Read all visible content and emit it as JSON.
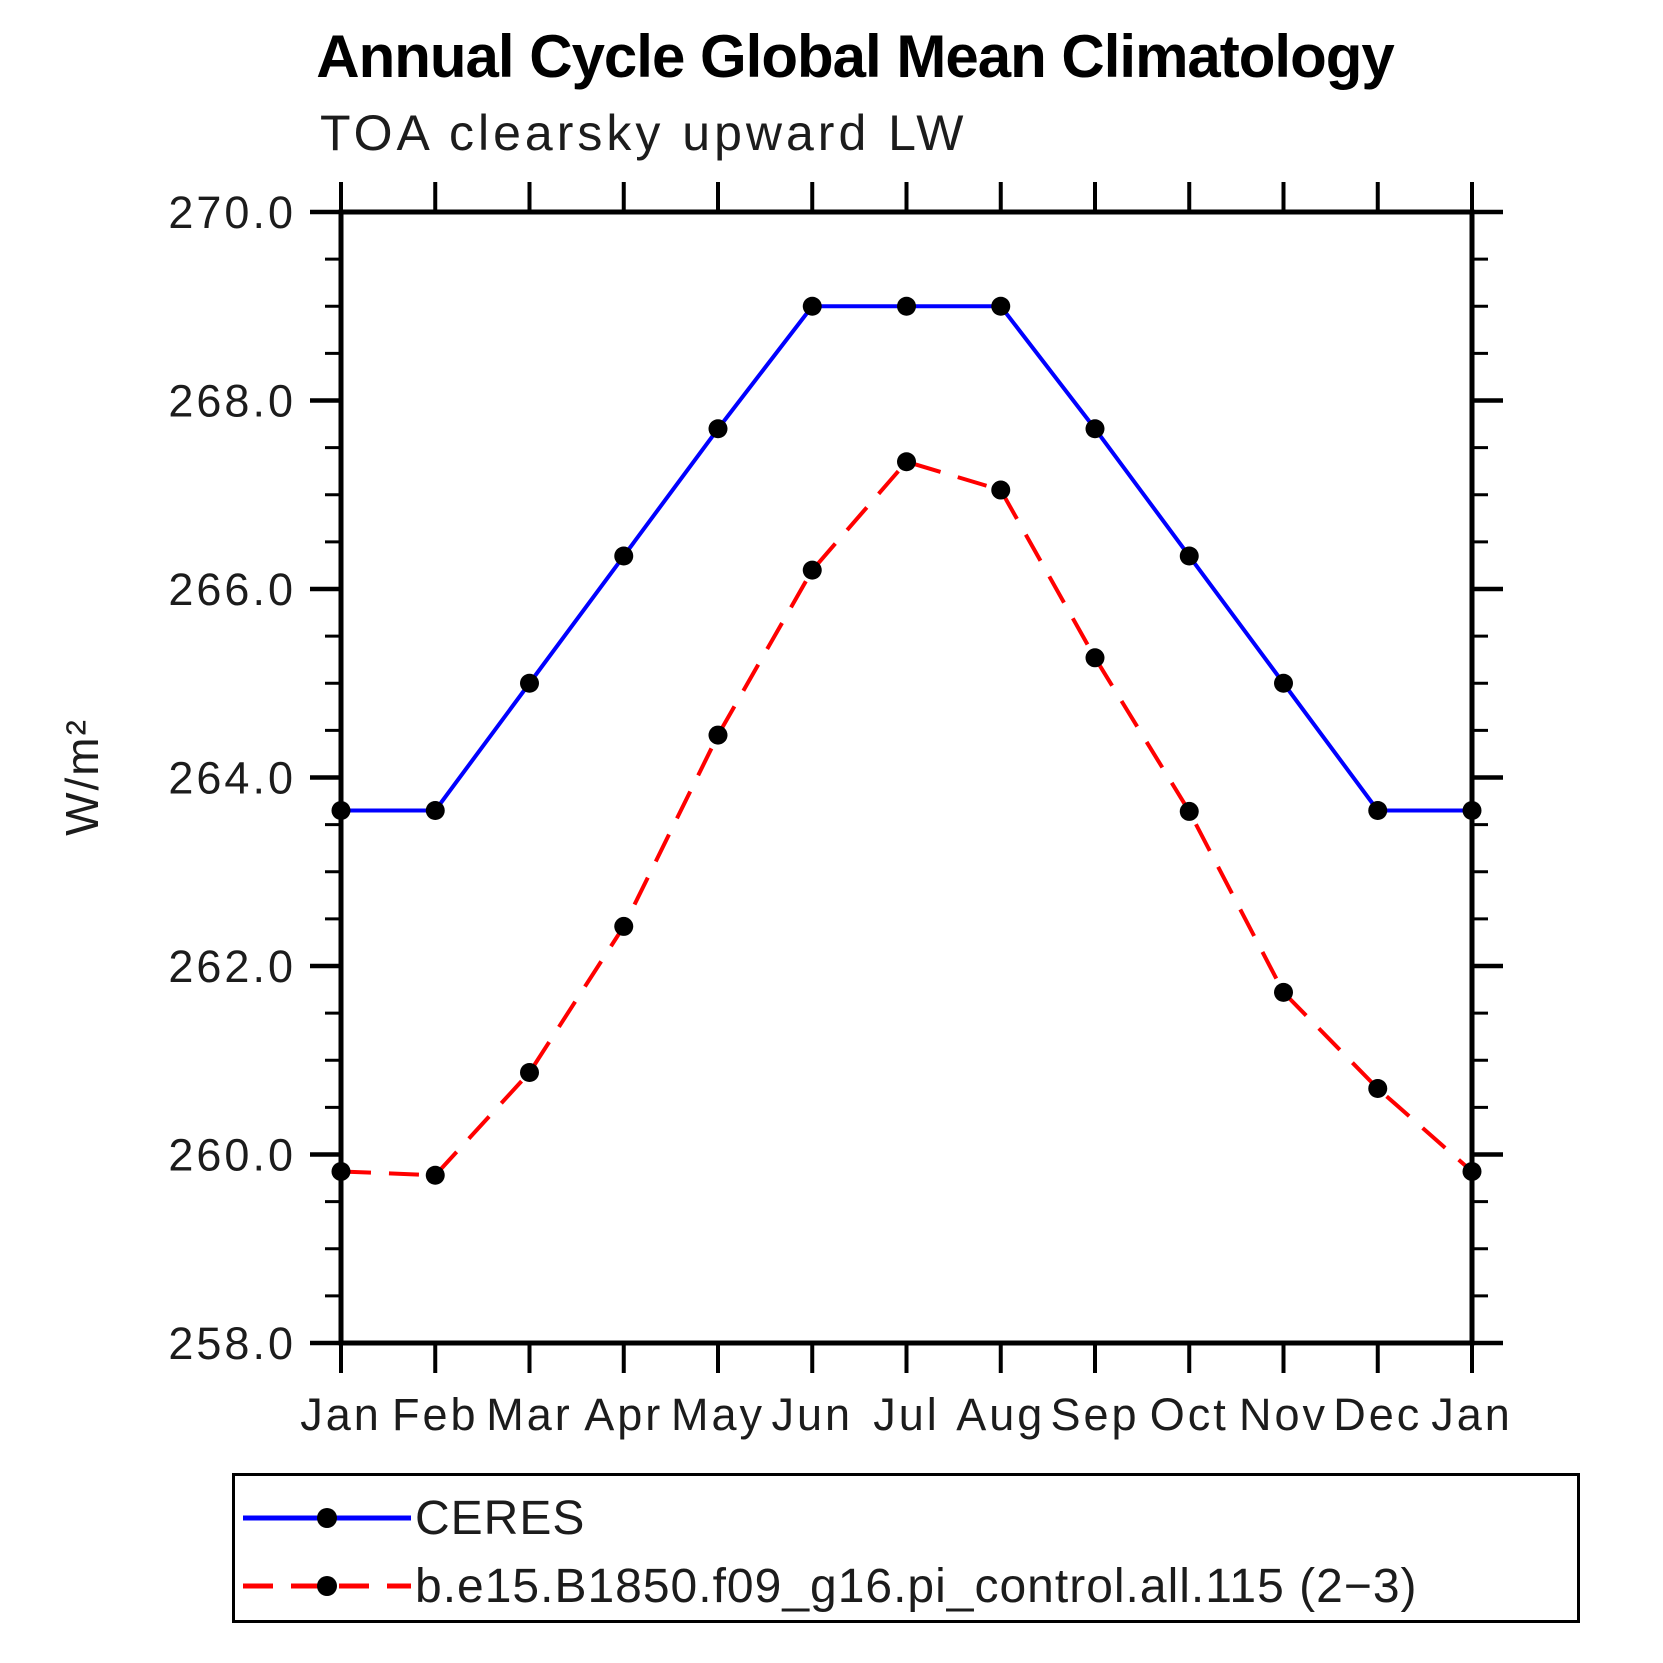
{
  "header": {
    "title": "Annual Cycle Global Mean Climatology",
    "subtitle": "TOA clearsky upward LW"
  },
  "legend": {
    "items": [
      {
        "label": "CERES",
        "line_style": "solid",
        "line_color": "#0000ff",
        "marker_color": "#000000"
      },
      {
        "label": "b.e15.B1850.f09_g16.pi_control.all.115 (2−3)",
        "line_style": "dashed",
        "line_color": "#ff0000",
        "marker_color": "#000000"
      }
    ]
  },
  "chart_data": {
    "type": "line",
    "title": "Annual Cycle Global Mean Climatology",
    "subtitle": "TOA clearsky upward LW",
    "xlabel": "",
    "ylabel": "W/m²",
    "categories": [
      "Jan",
      "Feb",
      "Mar",
      "Apr",
      "May",
      "Jun",
      "Jul",
      "Aug",
      "Sep",
      "Oct",
      "Nov",
      "Dec",
      "Jan"
    ],
    "series": [
      {
        "name": "CERES",
        "color": "#0000ff",
        "style": "solid",
        "marker": "circle",
        "marker_color": "#000000",
        "values": [
          263.65,
          263.65,
          265.0,
          266.35,
          267.7,
          269.0,
          269.0,
          269.0,
          267.7,
          266.35,
          265.0,
          263.65,
          263.65
        ]
      },
      {
        "name": "b.e15.B1850.f09_g16.pi_control.all.115 (2−3)",
        "color": "#ff0000",
        "style": "dashed",
        "marker": "circle",
        "marker_color": "#000000",
        "values": [
          259.82,
          259.78,
          260.87,
          262.42,
          264.45,
          266.2,
          267.35,
          267.05,
          265.27,
          263.64,
          261.72,
          260.7,
          259.82
        ]
      }
    ],
    "ylim": [
      258.0,
      270.0
    ],
    "ytick_step": 2.0,
    "yminor_step": 0.5,
    "grid": false,
    "legend_position": "bottom-left"
  }
}
